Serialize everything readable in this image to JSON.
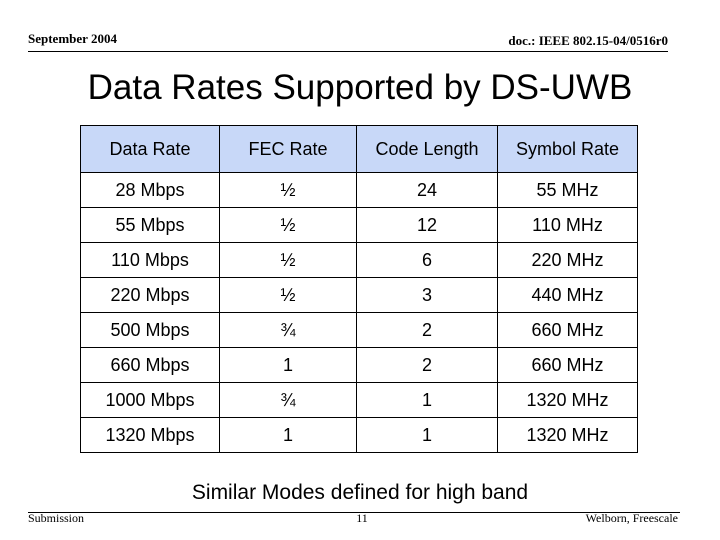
{
  "header": {
    "date": "September 2004",
    "doc": "doc.: IEEE 802.15-04/0516r0"
  },
  "title": "Data Rates Supported by DS-UWB",
  "table": {
    "columns": [
      "Data Rate",
      "FEC Rate",
      "Code Length",
      "Symbol Rate"
    ],
    "rows": [
      [
        "28 Mbps",
        "½",
        "24",
        "55 MHz"
      ],
      [
        "55 Mbps",
        "½",
        "12",
        "110 MHz"
      ],
      [
        "110 Mbps",
        "½",
        "6",
        "220 MHz"
      ],
      [
        "220 Mbps",
        "½",
        "3",
        "440 MHz"
      ],
      [
        "500 Mbps",
        "¾",
        "2",
        "660 MHz"
      ],
      [
        "660 Mbps",
        "1",
        "2",
        "660 MHz"
      ],
      [
        "1000 Mbps",
        "¾",
        "1",
        "1320 MHz"
      ],
      [
        "1320 Mbps",
        "1",
        "1",
        "1320 MHz"
      ]
    ]
  },
  "note": "Similar Modes defined for high band",
  "footer": {
    "left": "Submission",
    "page": "11",
    "right": "Welborn, Freescale"
  }
}
